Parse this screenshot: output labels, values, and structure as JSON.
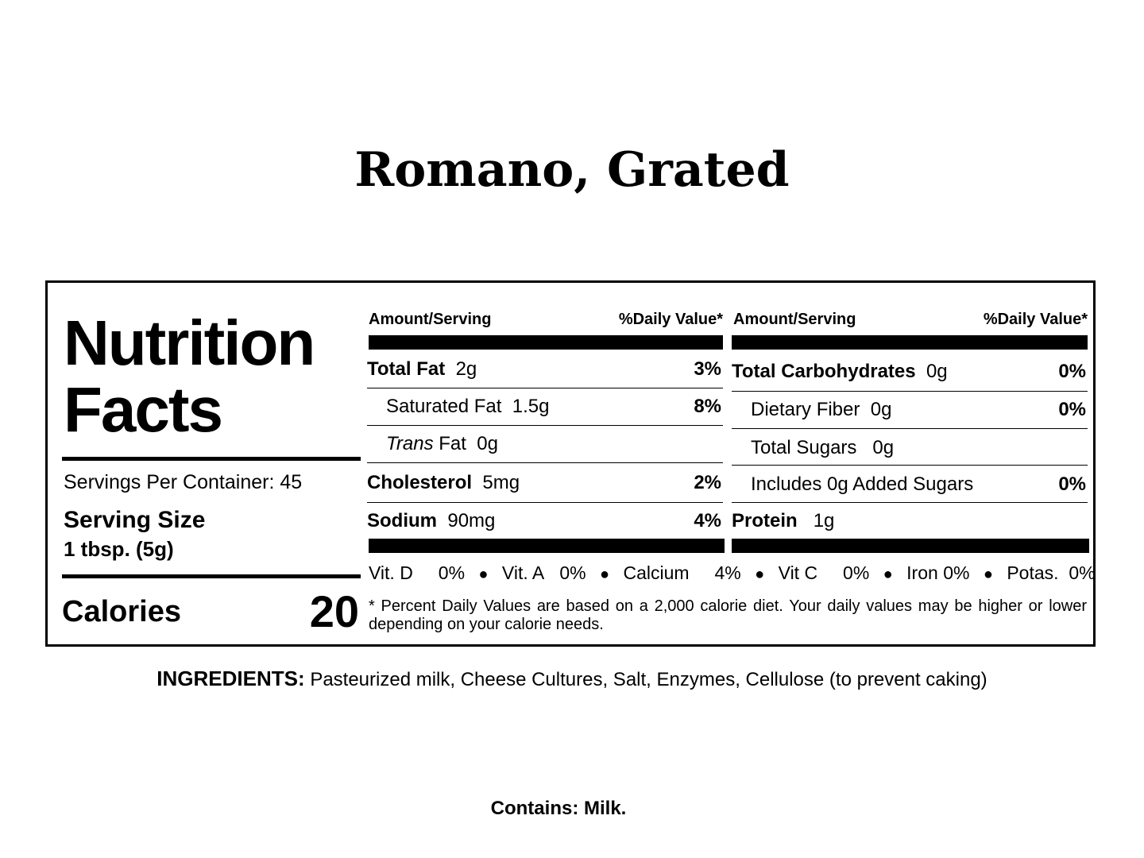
{
  "product_title": "Romano, Grated",
  "nutrition": {
    "heading_line1": "Nutrition",
    "heading_line2": "Facts",
    "servings_per_container": "Servings Per Container:  45",
    "serving_size_label": "Serving Size",
    "serving_size_value": "1 tbsp. (5g)",
    "calories_label": "Calories",
    "calories_value": "20",
    "col_header_amount": "Amount/Serving",
    "col_header_dv": "%Daily Value*",
    "left_rows": [
      {
        "name": "Total Fat",
        "amount": "2g",
        "dv": "3%"
      },
      {
        "name": "Saturated Fat",
        "amount": "1.5g",
        "dv": "8%"
      },
      {
        "name_italic": "Trans",
        "name": "Fat",
        "amount": "0g",
        "dv": ""
      },
      {
        "name": "Cholesterol",
        "amount": "5mg",
        "dv": "2%"
      },
      {
        "name": "Sodium",
        "amount": "90mg",
        "dv": "4%"
      }
    ],
    "right_rows": [
      {
        "name": "Total Carbohydrates",
        "amount": "0g",
        "dv": "0%"
      },
      {
        "name": "Dietary Fiber",
        "amount": "0g",
        "dv": "0%"
      },
      {
        "name": "Total Sugars",
        "amount": "0g",
        "dv": ""
      },
      {
        "name": "Includes 0g Added Sugars",
        "amount": "",
        "dv": "0%"
      },
      {
        "name": "Protein",
        "amount": "1g",
        "dv": ""
      }
    ],
    "vitamins": [
      {
        "name": "Vit. D",
        "value": "0%"
      },
      {
        "name": "Vit. A",
        "value": "0%"
      },
      {
        "name": "Calcium",
        "value": "4%"
      },
      {
        "name": "Vit C",
        "value": "0%"
      },
      {
        "name": "Iron",
        "value": "0%"
      },
      {
        "name": "Potas.",
        "value": "0%"
      }
    ],
    "footnote": "* Percent Daily Values are based on a 2,000 calorie diet. Your daily values may be higher or lower depending on your calorie needs."
  },
  "ingredients": {
    "label": "INGREDIENTS:",
    "text": "Pasteurized milk, Cheese Cultures, Salt, Enzymes, Cellulose (to prevent caking)"
  },
  "contains": "Contains:  Milk."
}
